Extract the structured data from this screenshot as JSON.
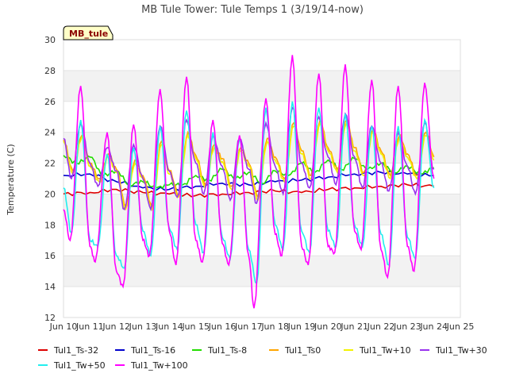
{
  "chart_data": {
    "type": "line",
    "title": "MB Tule Tower: Tule Temps 1 (3/19/14-now)",
    "ylabel": "Temperature (C)",
    "xlabel": "",
    "badge": "MB_tule",
    "ylim": [
      12,
      30
    ],
    "xlim": [
      10,
      25
    ],
    "yticks": [
      12,
      14,
      16,
      18,
      20,
      22,
      24,
      26,
      28,
      30
    ],
    "xticks": [
      {
        "value": 10,
        "label": "Jun 10"
      },
      {
        "value": 11,
        "label": "Jun 11"
      },
      {
        "value": 12,
        "label": "Jun 12"
      },
      {
        "value": 13,
        "label": "Jun 13"
      },
      {
        "value": 14,
        "label": "Jun 14"
      },
      {
        "value": 15,
        "label": "Jun 15"
      },
      {
        "value": 16,
        "label": "Jun 16"
      },
      {
        "value": 17,
        "label": "Jun 17"
      },
      {
        "value": 18,
        "label": "Jun 18"
      },
      {
        "value": 19,
        "label": "Jun 19"
      },
      {
        "value": 20,
        "label": "Jun 20"
      },
      {
        "value": 21,
        "label": "Jun 21"
      },
      {
        "value": 22,
        "label": "Jun 22"
      },
      {
        "value": 23,
        "label": "Jun 23"
      },
      {
        "value": 24,
        "label": "Jun 24"
      },
      {
        "value": 25,
        "label": "Jun 25"
      }
    ],
    "grid": "horizontal bands",
    "legend_position": "bottom",
    "series": [
      {
        "name": "Tul1_Ts-32",
        "color": "#dd0000",
        "x": [
          10,
          11,
          12,
          13,
          14,
          15,
          16,
          17,
          18,
          19,
          20,
          21,
          22,
          23,
          24
        ],
        "y": [
          20.0,
          20.1,
          20.3,
          20.1,
          20.0,
          19.9,
          20.0,
          20.1,
          20.2,
          20.1,
          20.3,
          20.4,
          20.5,
          20.6,
          20.5
        ]
      },
      {
        "name": "Tul1_Ts-16",
        "color": "#0000cc",
        "x": [
          10,
          11,
          12,
          13,
          14,
          15,
          16,
          17,
          18,
          19,
          20,
          21,
          22,
          23,
          24
        ],
        "y": [
          21.2,
          21.3,
          20.8,
          20.4,
          20.3,
          20.5,
          20.7,
          20.6,
          20.8,
          20.9,
          21.1,
          21.3,
          21.4,
          21.3,
          21.2
        ]
      },
      {
        "name": "Tul1_Ts-8",
        "color": "#22dd00",
        "x": [
          10,
          10.5,
          11,
          11.5,
          12,
          12.5,
          13,
          13.5,
          14,
          14.5,
          15,
          15.5,
          16,
          16.5,
          17,
          17.5,
          18,
          18.5,
          19,
          19.5,
          20,
          20.5,
          21,
          21.5,
          22,
          22.5,
          23,
          23.5,
          24
        ],
        "y": [
          22.5,
          22.0,
          22.4,
          21.2,
          21.5,
          20.6,
          20.8,
          20.4,
          20.6,
          20.6,
          21.2,
          20.9,
          21.6,
          21.0,
          21.4,
          20.7,
          21.5,
          21.2,
          22.0,
          21.4,
          22.2,
          21.6,
          22.3,
          21.6,
          22.0,
          21.4,
          21.8,
          21.3,
          21.7
        ]
      },
      {
        "name": "Tul1_Ts0",
        "color": "#ffa500",
        "x": [
          10,
          10.35,
          10.7,
          11,
          11.35,
          11.7,
          12,
          12.35,
          12.7,
          13,
          13.35,
          13.7,
          14,
          14.35,
          14.7,
          15,
          15.35,
          15.7,
          16,
          16.35,
          16.7,
          17,
          17.35,
          17.7,
          18,
          18.35,
          18.7,
          19,
          19.35,
          19.7,
          20,
          20.35,
          20.7,
          21,
          21.35,
          21.7,
          22,
          22.35,
          22.7,
          23,
          23.35,
          23.7,
          24
        ],
        "y": [
          23.5,
          21.5,
          23.8,
          22.0,
          21.0,
          22.6,
          21.6,
          19.2,
          22.2,
          21.2,
          19.2,
          23.4,
          21.5,
          20.0,
          24.0,
          22.5,
          20.6,
          23.2,
          22.3,
          20.5,
          23.0,
          22.0,
          19.8,
          23.6,
          22.4,
          21.0,
          24.6,
          22.8,
          21.2,
          24.8,
          23.0,
          21.6,
          24.8,
          23.0,
          21.4,
          24.2,
          22.8,
          21.2,
          23.8,
          22.6,
          21.2,
          24.0,
          22.4
        ]
      },
      {
        "name": "Tul1_Tw+10",
        "color": "#f2f200",
        "x": [
          10,
          10.35,
          10.7,
          11,
          11.35,
          11.7,
          12,
          12.35,
          12.7,
          13,
          13.35,
          13.7,
          14,
          14.35,
          14.7,
          15,
          15.35,
          15.7,
          16,
          16.35,
          16.7,
          17,
          17.35,
          17.7,
          18,
          18.35,
          18.7,
          19,
          19.35,
          19.7,
          20,
          20.35,
          20.7,
          21,
          21.35,
          21.7,
          22,
          22.35,
          22.7,
          23,
          23.35,
          23.7,
          24
        ],
        "y": [
          23.4,
          21.3,
          23.7,
          21.8,
          20.8,
          22.4,
          21.4,
          19.0,
          22.0,
          21.0,
          19.0,
          23.2,
          21.3,
          19.8,
          23.8,
          22.3,
          20.4,
          23.0,
          22.1,
          20.3,
          22.8,
          21.8,
          19.6,
          23.4,
          22.2,
          20.8,
          24.4,
          22.6,
          21.0,
          24.6,
          22.8,
          21.4,
          24.6,
          22.8,
          21.2,
          24.0,
          22.6,
          21.0,
          23.6,
          22.4,
          21.0,
          23.8,
          22.2
        ]
      },
      {
        "name": "Tul1_Tw+30",
        "color": "#9933ee",
        "x": [
          10,
          10.3,
          10.65,
          11,
          11.3,
          11.65,
          12,
          12.3,
          12.65,
          13,
          13.3,
          13.65,
          14,
          14.3,
          14.65,
          15,
          15.3,
          15.65,
          16,
          16.3,
          16.65,
          17,
          17.3,
          17.65,
          18,
          18.3,
          18.65,
          19,
          19.3,
          19.65,
          20,
          20.3,
          20.65,
          21,
          21.3,
          21.65,
          22,
          22.3,
          22.65,
          23,
          23.3,
          23.65,
          24
        ],
        "y": [
          23.6,
          21.0,
          24.6,
          22.0,
          20.5,
          23.0,
          21.5,
          19.0,
          23.2,
          21.0,
          19.0,
          24.4,
          21.5,
          19.8,
          24.8,
          22.0,
          20.0,
          23.8,
          21.8,
          19.6,
          23.6,
          21.6,
          19.4,
          24.6,
          21.8,
          20.0,
          25.6,
          22.0,
          20.4,
          25.0,
          22.4,
          20.6,
          25.2,
          22.4,
          20.4,
          24.4,
          22.0,
          20.2,
          24.0,
          21.8,
          20.0,
          24.6,
          21.6
        ]
      },
      {
        "name": "Tul1_Tw+50",
        "color": "#22eeee",
        "x": [
          10,
          10.3,
          10.65,
          11,
          11.3,
          11.65,
          12,
          12.3,
          12.65,
          13,
          13.3,
          13.65,
          14,
          14.3,
          14.65,
          15,
          15.3,
          15.65,
          16,
          16.3,
          16.65,
          17,
          17.3,
          17.65,
          18,
          18.3,
          18.65,
          19,
          19.3,
          19.65,
          20,
          20.3,
          20.65,
          21,
          21.3,
          21.65,
          22,
          22.3,
          22.65,
          23,
          23.3,
          23.65,
          24
        ],
        "y": [
          20.4,
          17.5,
          24.8,
          17.0,
          16.6,
          22.6,
          16.0,
          15.2,
          23.0,
          17.6,
          16.0,
          24.4,
          17.8,
          16.4,
          25.4,
          18.0,
          16.2,
          24.0,
          17.2,
          15.8,
          23.6,
          16.4,
          14.2,
          25.6,
          18.0,
          16.4,
          26.0,
          17.6,
          16.2,
          25.6,
          17.6,
          16.6,
          25.2,
          18.0,
          16.6,
          24.4,
          17.4,
          15.4,
          24.4,
          17.2,
          15.8,
          24.8,
          20.4
        ]
      },
      {
        "name": "Tul1_Tw+100",
        "color": "#ff00ff",
        "x": [
          10,
          10.25,
          10.65,
          11,
          11.2,
          11.65,
          12,
          12.25,
          12.65,
          13,
          13.25,
          13.65,
          14,
          14.25,
          14.65,
          15,
          15.25,
          15.65,
          16,
          16.25,
          16.65,
          17,
          17.2,
          17.65,
          18,
          18.25,
          18.65,
          19,
          19.25,
          19.65,
          20,
          20.25,
          20.65,
          21,
          21.25,
          21.65,
          22,
          22.25,
          22.65,
          23,
          23.25,
          23.65,
          24
        ],
        "y": [
          19.0,
          17.0,
          27.0,
          16.6,
          15.6,
          24.0,
          15.0,
          14.0,
          24.5,
          17.0,
          16.0,
          26.8,
          17.6,
          15.4,
          27.6,
          17.0,
          15.6,
          24.8,
          16.8,
          15.4,
          23.8,
          16.0,
          12.6,
          26.2,
          17.4,
          16.0,
          29.0,
          16.6,
          15.4,
          27.8,
          16.6,
          16.2,
          28.4,
          17.6,
          16.4,
          27.4,
          16.4,
          14.6,
          27.0,
          16.6,
          15.0,
          27.2,
          21.0
        ]
      }
    ]
  }
}
